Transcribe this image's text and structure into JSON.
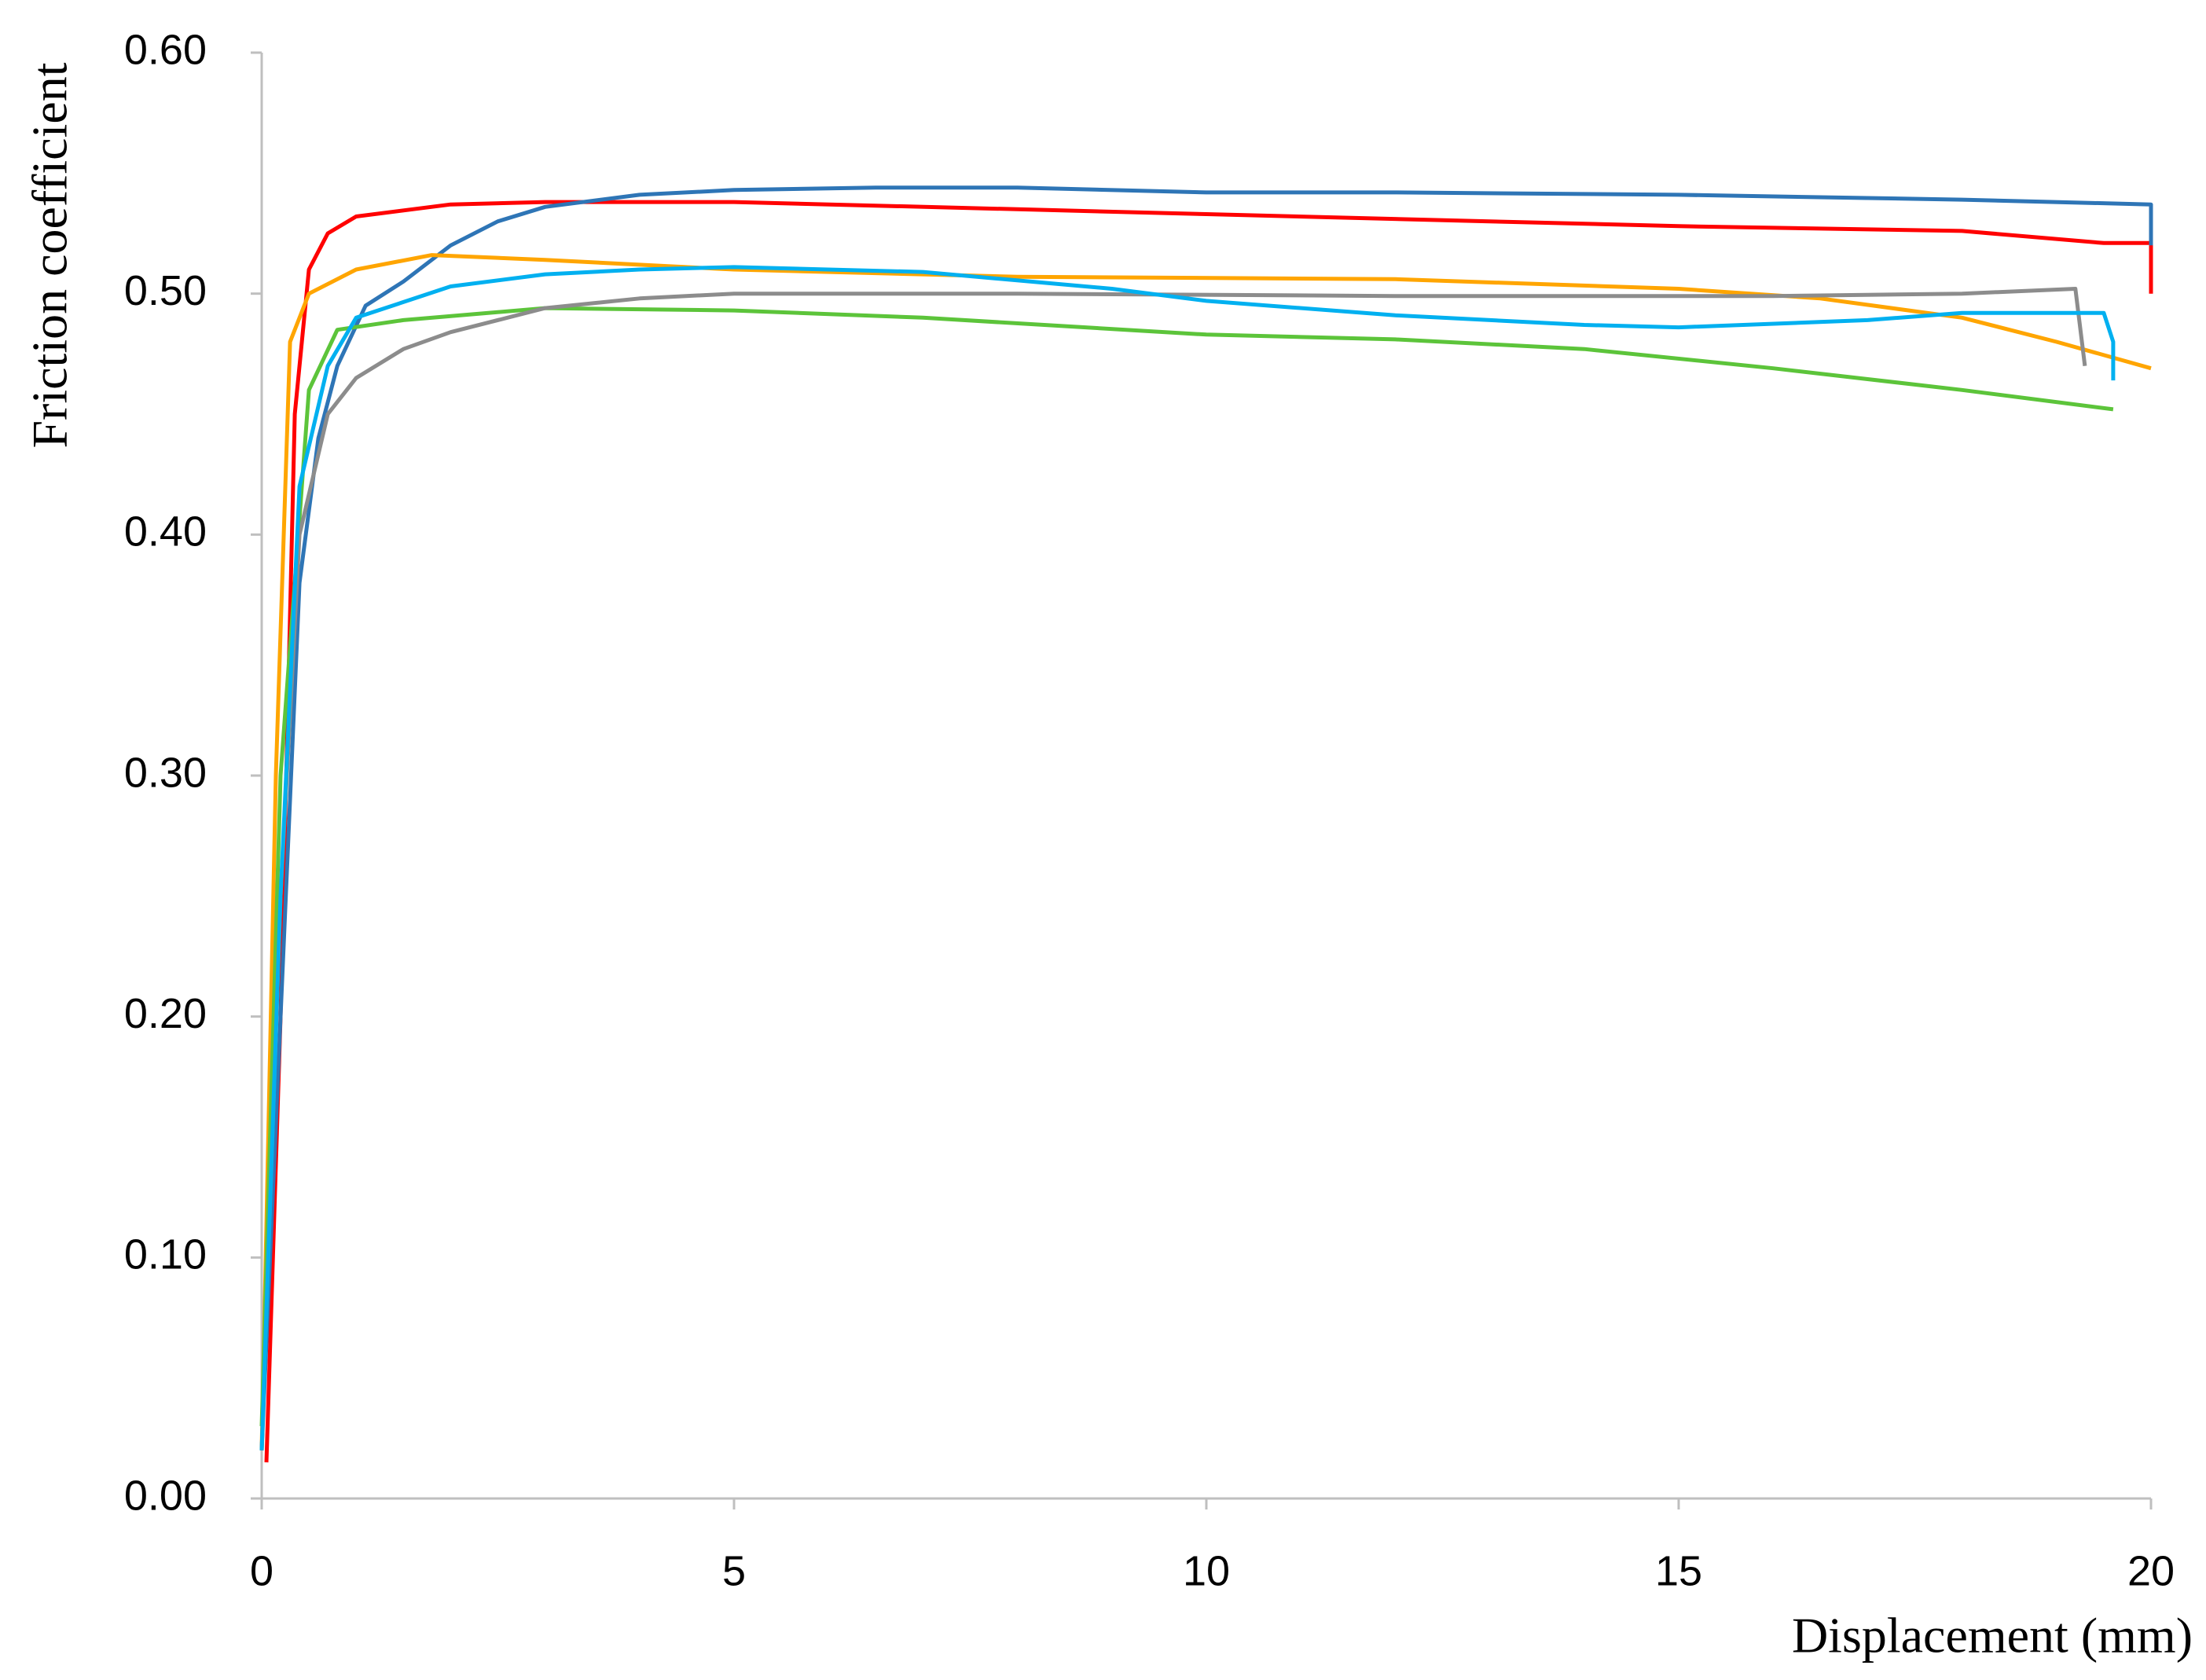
{
  "chart_data": {
    "type": "line",
    "xlabel": "Displacement (mm)",
    "ylabel": "Friction coefficient",
    "xlim": [
      0,
      20
    ],
    "xticks": [
      0,
      5,
      10,
      15,
      20
    ],
    "ylim": [
      0,
      0.6
    ],
    "yticks": [
      {
        "value": 0,
        "label": "0.00"
      },
      {
        "value": 0.1,
        "label": "0.10"
      },
      {
        "value": 0.2,
        "label": "0.20"
      },
      {
        "value": 0.3,
        "label": "0.30"
      },
      {
        "value": 0.4,
        "label": "0.40"
      },
      {
        "value": 0.5,
        "label": "0.50"
      },
      {
        "value": 0.6,
        "label": "0.60"
      }
    ],
    "grid": false,
    "series": [
      {
        "color": "#ff0000",
        "x": [
          0.05,
          0.2,
          0.35,
          0.5,
          0.7,
          1,
          2,
          3,
          5,
          8,
          10,
          13,
          15,
          18,
          19.5,
          20,
          20
        ],
        "values": [
          0.015,
          0.2,
          0.45,
          0.51,
          0.525,
          0.532,
          0.537,
          0.538,
          0.538,
          0.535,
          0.533,
          0.53,
          0.528,
          0.526,
          0.521,
          0.521,
          0.5
        ]
      },
      {
        "color": "#2e75b6",
        "x": [
          0,
          0.2,
          0.4,
          0.6,
          0.8,
          1.1,
          1.5,
          2,
          2.5,
          3,
          4,
          5,
          6.5,
          8,
          10,
          12,
          15,
          18,
          20,
          20
        ],
        "values": [
          0.02,
          0.2,
          0.38,
          0.44,
          0.47,
          0.495,
          0.505,
          0.52,
          0.53,
          0.536,
          0.541,
          0.543,
          0.544,
          0.544,
          0.542,
          0.542,
          0.541,
          0.539,
          0.537,
          0.52
        ]
      },
      {
        "color": "#ffa500",
        "x": [
          0,
          0.15,
          0.3,
          0.5,
          1,
          1.8,
          3,
          5,
          8,
          12,
          15,
          16.5,
          18,
          19,
          20
        ],
        "values": [
          0.02,
          0.3,
          0.48,
          0.5,
          0.51,
          0.516,
          0.514,
          0.51,
          0.507,
          0.506,
          0.502,
          0.498,
          0.49,
          0.48,
          0.469
        ]
      },
      {
        "color": "#5cc43a",
        "x": [
          0,
          0.2,
          0.5,
          0.8,
          1.5,
          3,
          5,
          7,
          10,
          12,
          14,
          16,
          18,
          19.6
        ],
        "values": [
          0.03,
          0.3,
          0.46,
          0.485,
          0.489,
          0.494,
          0.493,
          0.49,
          0.483,
          0.481,
          0.477,
          0.469,
          0.46,
          0.452
        ]
      },
      {
        "color": "#8c8c8c",
        "x": [
          0,
          0.2,
          0.4,
          0.7,
          1,
          1.5,
          2,
          3,
          4,
          5,
          8,
          12,
          16,
          18,
          19.2,
          19.3
        ],
        "values": [
          0.02,
          0.25,
          0.4,
          0.45,
          0.465,
          0.477,
          0.484,
          0.494,
          0.498,
          0.5,
          0.5,
          0.499,
          0.499,
          0.5,
          0.502,
          0.47
        ]
      },
      {
        "color": "#00b0f0",
        "x": [
          0,
          0.2,
          0.4,
          0.7,
          1,
          2,
          3,
          4,
          5,
          7,
          9,
          10,
          12,
          14,
          15,
          17,
          18,
          19.5,
          19.6,
          19.6
        ],
        "values": [
          0.02,
          0.25,
          0.42,
          0.47,
          0.49,
          0.503,
          0.508,
          0.51,
          0.511,
          0.509,
          0.502,
          0.497,
          0.491,
          0.487,
          0.486,
          0.489,
          0.492,
          0.492,
          0.48,
          0.464
        ]
      }
    ]
  }
}
